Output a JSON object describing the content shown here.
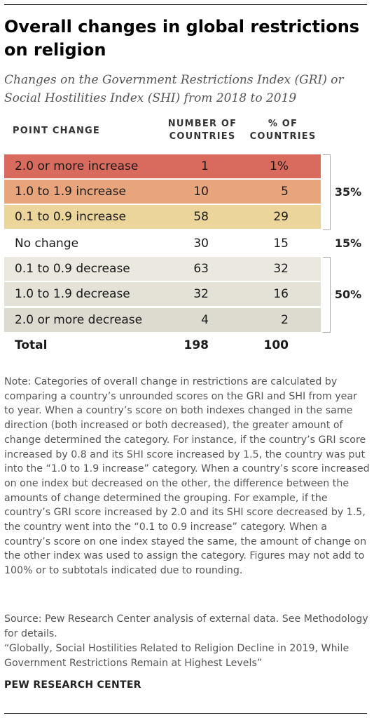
{
  "title": "Overall changes in global restrictions on religion",
  "subtitle": "Changes on the Government Restrictions Index (GRI) or Social Hostilities Index (SHI) from 2018 to 2019",
  "chart_data": {
    "type": "table",
    "columns": {
      "point_change": "POINT CHANGE",
      "number_line1": "NUMBER OF",
      "number_line2": "COUNTRIES",
      "pct_line1": "% OF",
      "pct_line2": "COUNTRIES"
    },
    "rows": [
      {
        "label": "2.0 or more increase",
        "number": 1,
        "number_text": "1",
        "percent": 1,
        "percent_text": "1%",
        "color": "#d96b5e"
      },
      {
        "label": "1.0 to 1.9 increase",
        "number": 10,
        "number_text": "10",
        "percent": 5,
        "percent_text": "5",
        "color": "#e8a47b"
      },
      {
        "label": "0.1 to 0.9 increase",
        "number": 58,
        "number_text": "58",
        "percent": 29,
        "percent_text": "29",
        "color": "#ecd59b"
      },
      {
        "label": "No change",
        "number": 30,
        "number_text": "30",
        "percent": 15,
        "percent_text": "15",
        "color": "#ffffff"
      },
      {
        "label": "0.1 to 0.9 decrease",
        "number": 63,
        "number_text": "63",
        "percent": 32,
        "percent_text": "32",
        "color": "#ebe8df"
      },
      {
        "label": "1.0 to 1.9 decrease",
        "number": 32,
        "number_text": "32",
        "percent": 16,
        "percent_text": "16",
        "color": "#e4e1d7"
      },
      {
        "label": "2.0 or more decrease",
        "number": 4,
        "number_text": "4",
        "percent": 2,
        "percent_text": "2",
        "color": "#dddad0"
      }
    ],
    "total": {
      "label": "Total",
      "number": 198,
      "number_text": "198",
      "percent": 100,
      "percent_text": "100"
    },
    "groups": [
      {
        "label": "35%",
        "value": 35
      },
      {
        "label": "15%",
        "value": 15
      },
      {
        "label": "50%",
        "value": 50
      }
    ]
  },
  "note": "Note: Categories of overall change in restrictions are calculated by comparing a country’s unrounded scores on the GRI and SHI from year to year. When a country’s score on both indexes changed in the same direction (both increased or both decreased), the greater amount of change determined the category. For instance, if the country’s GRI score increased by 0.8 and its SHI score increased by 1.5, the country was put into the “1.0 to 1.9 increase” category. When a country’s score increased on one index but decreased on the other, the difference between the amounts of change determined the grouping. For example, if the country’s GRI score increased by 2.0 and its SHI score decreased by 1.5, the country went into the “0.1 to 0.9 increase” category. When a country’s score on one index stayed the same, the amount of change on the other index was used to assign the category. Figures may not add to 100% or to subtotals indicated due to rounding.",
  "source": "Source: Pew Research Center analysis of external data. See Methodology for details.",
  "report": "“Globally, Social Hostilities Related to Religion Decline in 2019, While Government Restrictions Remain at Highest Levels”",
  "logo": "PEW RESEARCH CENTER"
}
